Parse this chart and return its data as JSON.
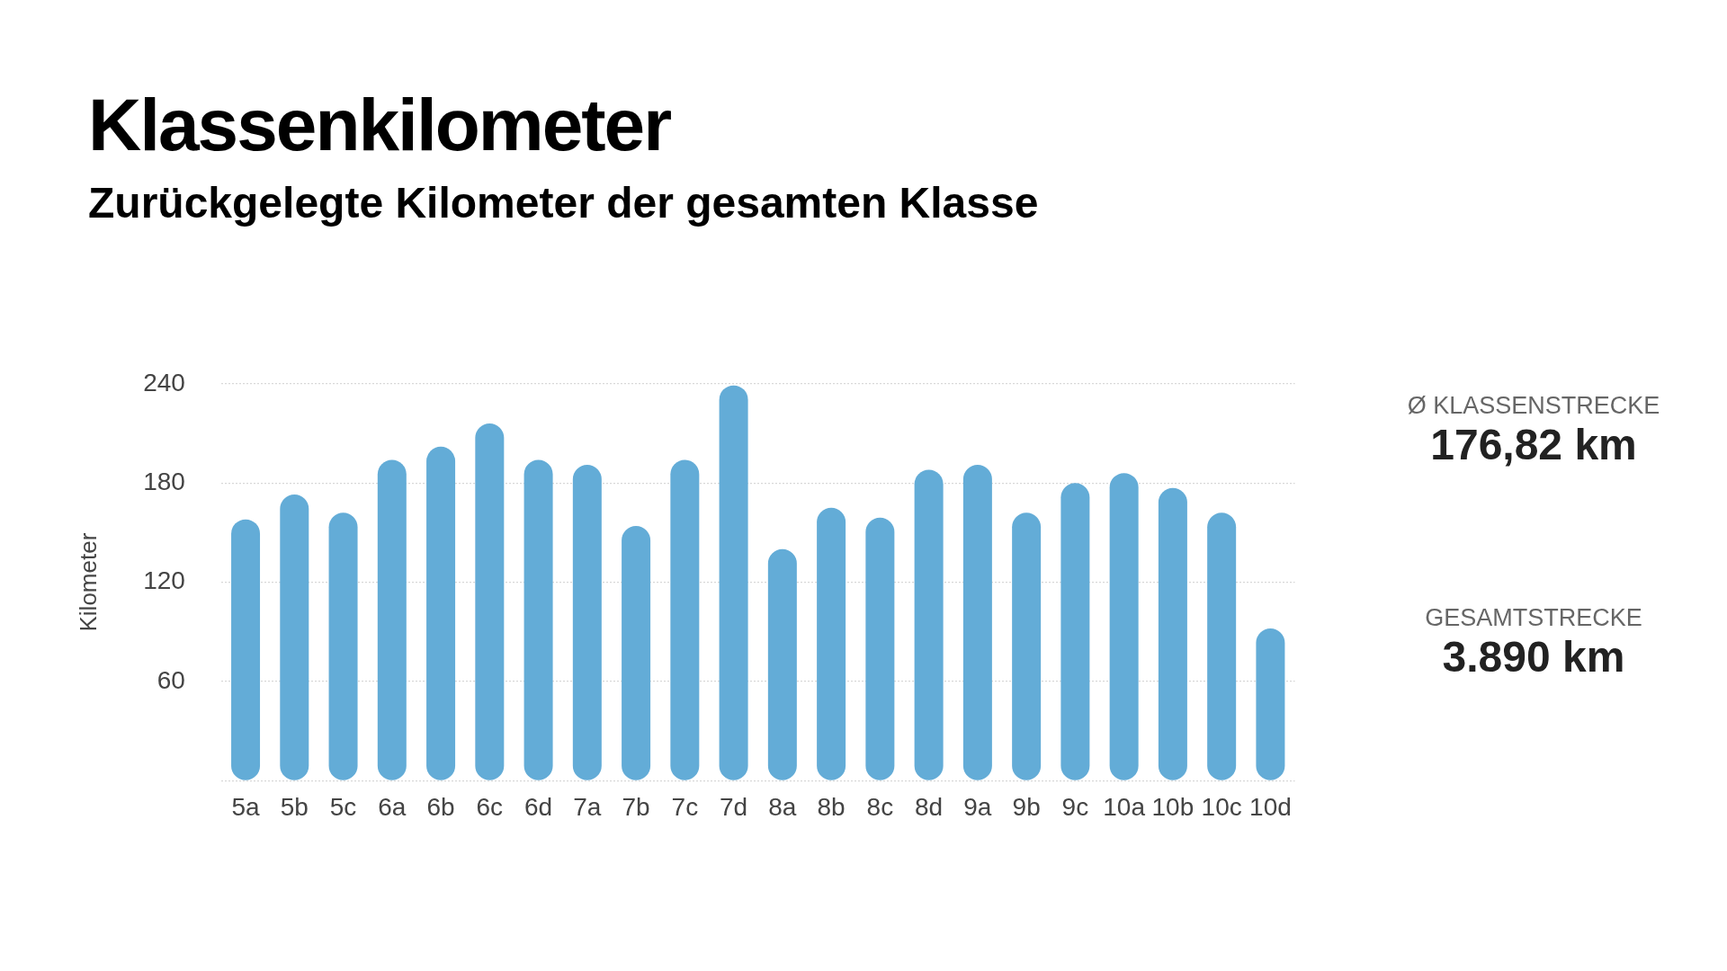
{
  "chart_data": {
    "type": "bar",
    "title": "Klassenkilometer",
    "subtitle": "Zurückgelegte Kilometer der gesamten Klasse",
    "ylabel": "Kilometer",
    "categories": [
      "5a",
      "5b",
      "5c",
      "6a",
      "6b",
      "6c",
      "6d",
      "7a",
      "7b",
      "7c",
      "7d",
      "8a",
      "8b",
      "8c",
      "8d",
      "9a",
      "9b",
      "9c",
      "10a",
      "10b",
      "10c",
      "10d"
    ],
    "values": [
      158,
      173,
      162,
      194,
      202,
      216,
      194,
      191,
      154,
      194,
      239,
      140,
      165,
      159,
      188,
      191,
      162,
      180,
      186,
      177,
      162,
      92
    ],
    "color": "#63acd7",
    "ylim": [
      0,
      240
    ],
    "yticks": [
      {
        "value": 0,
        "label": null
      },
      60,
      120,
      180,
      240
    ],
    "grid": "y",
    "annotations": [
      "Ø KLASSENSTRECKE",
      "176,82 km",
      "GESAMTSTRECKE",
      "3.890 km"
    ]
  }
}
